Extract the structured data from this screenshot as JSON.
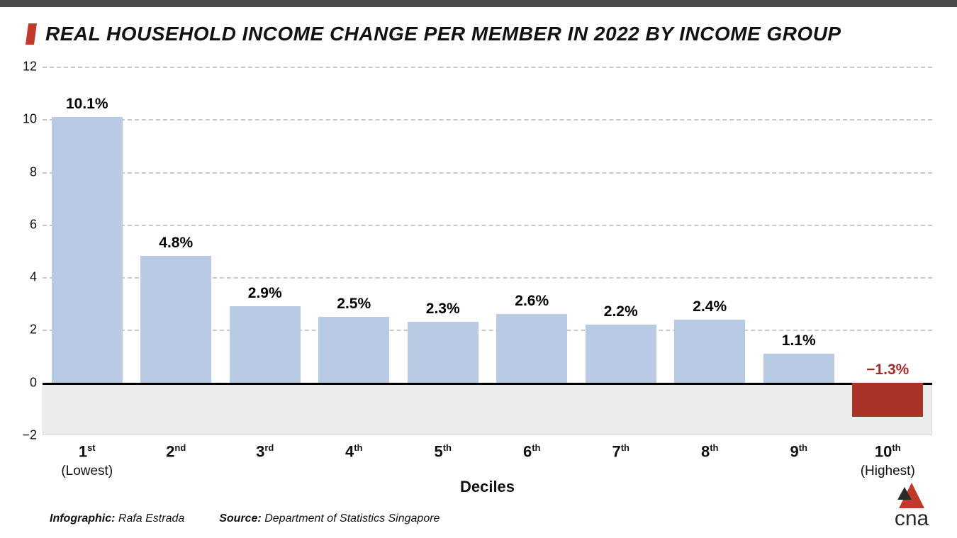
{
  "title": "REAL HOUSEHOLD INCOME CHANGE PER MEMBER IN 2022 BY INCOME GROUP",
  "accent_color": "#c0392b",
  "chart": {
    "type": "bar",
    "ylim": [
      -2,
      12
    ],
    "ytick_step": 2,
    "yticks": [
      -2,
      0,
      2,
      4,
      6,
      8,
      10,
      12
    ],
    "grid_positions": [
      2,
      4,
      6,
      8,
      10,
      12
    ],
    "grid_color": "#c9c9c9",
    "zero_line_color": "#000000",
    "neg_band_color": "#ececec",
    "background_color": "#ffffff",
    "bar_width_ratio": 0.8,
    "positive_color": "#b9cbe4",
    "negative_color": "#a93226",
    "value_label_color_pos": "#000000",
    "value_label_color_neg": "#a52a2a",
    "label_fontsize_pt": 21,
    "axis_fontsize_pt": 18,
    "categories": [
      {
        "ord": "1",
        "suf": "st",
        "sub": "(Lowest)"
      },
      {
        "ord": "2",
        "suf": "nd",
        "sub": ""
      },
      {
        "ord": "3",
        "suf": "rd",
        "sub": ""
      },
      {
        "ord": "4",
        "suf": "th",
        "sub": ""
      },
      {
        "ord": "5",
        "suf": "th",
        "sub": ""
      },
      {
        "ord": "6",
        "suf": "th",
        "sub": ""
      },
      {
        "ord": "7",
        "suf": "th",
        "sub": ""
      },
      {
        "ord": "8",
        "suf": "th",
        "sub": ""
      },
      {
        "ord": "9",
        "suf": "th",
        "sub": ""
      },
      {
        "ord": "10",
        "suf": "th",
        "sub": "(Highest)"
      }
    ],
    "values": [
      10.1,
      4.8,
      2.9,
      2.5,
      2.3,
      2.6,
      2.2,
      2.4,
      1.1,
      -1.3
    ],
    "value_labels": [
      "10.1%",
      "4.8%",
      "2.9%",
      "2.5%",
      "2.3%",
      "2.6%",
      "2.2%",
      "2.4%",
      "1.1%",
      "−1.3%"
    ],
    "x_axis_title": "Deciles"
  },
  "footer": {
    "infographic_label": "Infographic:",
    "infographic_value": "Rafa Estrada",
    "source_label": "Source:",
    "source_value": "Department of Statistics Singapore"
  },
  "logo_text": "cna",
  "logo_red": "#c0392b",
  "logo_dark": "#2b2b2b"
}
